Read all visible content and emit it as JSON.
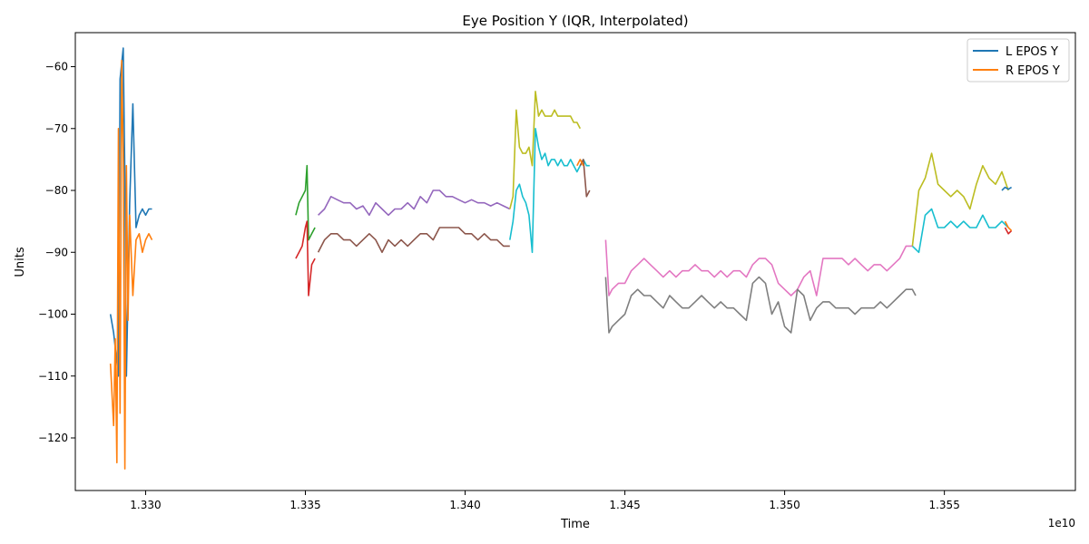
{
  "chart_data": {
    "type": "line",
    "title": "Eye Position Y (IQR, Interpolated)",
    "xlabel": "Time",
    "ylabel": "Units",
    "x_offset_label": "1e10",
    "xlim": [
      1.3278,
      1.3591
    ],
    "ylim": [
      -128.5,
      -54.5
    ],
    "x_ticks": [
      1.33,
      1.335,
      1.34,
      1.345,
      1.35,
      1.355
    ],
    "x_tick_labels": [
      "1.330",
      "1.335",
      "1.340",
      "1.345",
      "1.350",
      "1.355"
    ],
    "y_ticks": [
      -60,
      -70,
      -80,
      -90,
      -100,
      -110,
      -120
    ],
    "y_tick_labels": [
      "−60",
      "−70",
      "−80",
      "−90",
      "−100",
      "−110",
      "−120"
    ],
    "grid": false,
    "legend_position": "top-right",
    "legend": [
      {
        "label": "L EPOS Y",
        "color": "#1f77b4"
      },
      {
        "label": "R EPOS Y",
        "color": "#ff7f0e"
      }
    ],
    "series": [
      {
        "color": "#1f77b4",
        "x": [
          1.3289,
          1.329,
          1.32915,
          1.3292,
          1.3293,
          1.32935,
          1.3294,
          1.3295,
          1.3296,
          1.3297,
          1.3298,
          1.3299,
          1.33,
          1.3301,
          1.3302
        ],
        "y": [
          -100,
          -103,
          -110,
          -62,
          -57,
          -78,
          -110,
          -82,
          -66,
          -86,
          -84,
          -83,
          -84,
          -83,
          -83
        ]
      },
      {
        "color": "#ff7f0e",
        "x": [
          1.3289,
          1.329,
          1.32905,
          1.3291,
          1.32915,
          1.3292,
          1.32925,
          1.3293,
          1.32935,
          1.3294,
          1.32945,
          1.3295,
          1.3296,
          1.3297,
          1.3298,
          1.3299,
          1.33,
          1.3301,
          1.3302
        ],
        "y": [
          -108,
          -118,
          -104,
          -124,
          -70,
          -116,
          -59,
          -74,
          -125,
          -76,
          -101,
          -84,
          -97,
          -88,
          -87,
          -90,
          -88,
          -87,
          -88
        ]
      },
      {
        "color": "#2ca02c",
        "x": [
          1.3347,
          1.3348,
          1.3349,
          1.335,
          1.33505,
          1.3351,
          1.3352,
          1.3353
        ],
        "y": [
          -84,
          -82,
          -81,
          -80,
          -76,
          -88,
          -87,
          -86
        ]
      },
      {
        "color": "#d62728",
        "x": [
          1.3347,
          1.3348,
          1.3349,
          1.335,
          1.33505,
          1.3351,
          1.3352,
          1.3353
        ],
        "y": [
          -91,
          -90,
          -89,
          -86,
          -85,
          -97,
          -92,
          -91
        ]
      },
      {
        "color": "#9467bd",
        "x": [
          1.3354,
          1.3356,
          1.3358,
          1.336,
          1.3362,
          1.3364,
          1.3366,
          1.3368,
          1.337,
          1.3372,
          1.3374,
          1.3376,
          1.3378,
          1.338,
          1.3382,
          1.3384,
          1.3386,
          1.3388,
          1.339,
          1.3392,
          1.3394,
          1.3396,
          1.3398,
          1.34,
          1.3402,
          1.3404,
          1.3406,
          1.3408,
          1.341,
          1.3412,
          1.3414
        ],
        "y": [
          -84,
          -83,
          -81,
          -81.5,
          -82,
          -82,
          -83,
          -82.5,
          -84,
          -82,
          -83,
          -84,
          -83,
          -83,
          -82,
          -83,
          -81,
          -82,
          -80,
          -80,
          -81,
          -81,
          -81.5,
          -82,
          -81.5,
          -82,
          -82,
          -82.5,
          -82,
          -82.5,
          -83
        ]
      },
      {
        "color": "#8c564b",
        "x": [
          1.3354,
          1.3356,
          1.3358,
          1.336,
          1.3362,
          1.3364,
          1.3366,
          1.3368,
          1.337,
          1.3372,
          1.3374,
          1.3376,
          1.3378,
          1.338,
          1.3382,
          1.3384,
          1.3386,
          1.3388,
          1.339,
          1.3392,
          1.3394,
          1.3396,
          1.3398,
          1.34,
          1.3402,
          1.3404,
          1.3406,
          1.3408,
          1.341,
          1.3412,
          1.3414
        ],
        "y": [
          -90,
          -88,
          -87,
          -87,
          -88,
          -88,
          -89,
          -88,
          -87,
          -88,
          -90,
          -88,
          -89,
          -88,
          -89,
          -88,
          -87,
          -87,
          -88,
          -86,
          -86,
          -86,
          -86,
          -87,
          -87,
          -88,
          -87,
          -88,
          -88,
          -89,
          -89
        ]
      },
      {
        "color": "#17becf",
        "x": [
          1.3414,
          1.3415,
          1.3416,
          1.3417,
          1.3418,
          1.3419,
          1.342,
          1.3421,
          1.3422,
          1.3423,
          1.3424,
          1.3425,
          1.3426,
          1.3427,
          1.3428,
          1.3429,
          1.343,
          1.3431,
          1.3432,
          1.3433,
          1.3434,
          1.3435,
          1.3436,
          1.3437,
          1.3438,
          1.3439
        ],
        "y": [
          -88,
          -85,
          -80,
          -79,
          -81,
          -82,
          -84,
          -90,
          -70,
          -73,
          -75,
          -74,
          -76,
          -75,
          -75,
          -76,
          -75,
          -76,
          -76,
          -75,
          -76,
          -77,
          -76,
          -75,
          -76,
          -76
        ]
      },
      {
        "color": "#bcbd22",
        "x": [
          1.3414,
          1.3415,
          1.3416,
          1.3417,
          1.3418,
          1.3419,
          1.342,
          1.3421,
          1.3422,
          1.3423,
          1.3424,
          1.3425,
          1.3426,
          1.3427,
          1.3428,
          1.3429,
          1.343,
          1.3431,
          1.3432,
          1.3433,
          1.3434,
          1.3435,
          1.3436
        ],
        "y": [
          -83,
          -81,
          -67,
          -73,
          -74,
          -74,
          -73,
          -76,
          -64,
          -68,
          -67,
          -68,
          -68,
          -68,
          -67,
          -68,
          -68,
          -68,
          -68,
          -68,
          -69,
          -69,
          -70
        ]
      },
      {
        "color": "#e377c2",
        "x": [
          1.3444,
          1.3445,
          1.3446,
          1.3448,
          1.345,
          1.3452,
          1.3454,
          1.3456,
          1.3458,
          1.346,
          1.3462,
          1.3464,
          1.3466,
          1.3468,
          1.347,
          1.3472,
          1.3474,
          1.3476,
          1.3478,
          1.348,
          1.3482,
          1.3484,
          1.3486,
          1.3488,
          1.349,
          1.3492,
          1.3494,
          1.3496,
          1.3498,
          1.35,
          1.3502,
          1.3504,
          1.3506,
          1.3508,
          1.351,
          1.3512,
          1.3514,
          1.3516,
          1.3518,
          1.352,
          1.3522,
          1.3524,
          1.3526,
          1.3528,
          1.353,
          1.3532,
          1.3534,
          1.3536,
          1.3538,
          1.354
        ],
        "y": [
          -88,
          -97,
          -96,
          -95,
          -95,
          -93,
          -92,
          -91,
          -92,
          -93,
          -94,
          -93,
          -94,
          -93,
          -93,
          -92,
          -93,
          -93,
          -94,
          -93,
          -94,
          -93,
          -93,
          -94,
          -92,
          -91,
          -91,
          -92,
          -95,
          -96,
          -97,
          -96,
          -94,
          -93,
          -97,
          -91,
          -91,
          -91,
          -91,
          -92,
          -91,
          -92,
          -93,
          -92,
          -92,
          -93,
          -92,
          -91,
          -89,
          -89
        ]
      },
      {
        "color": "#7f7f7f",
        "x": [
          1.3444,
          1.3445,
          1.3446,
          1.3448,
          1.345,
          1.3452,
          1.3454,
          1.3456,
          1.3458,
          1.346,
          1.3462,
          1.3464,
          1.3466,
          1.3468,
          1.347,
          1.3472,
          1.3474,
          1.3476,
          1.3478,
          1.348,
          1.3482,
          1.3484,
          1.3486,
          1.3488,
          1.349,
          1.3492,
          1.3494,
          1.3496,
          1.3498,
          1.35,
          1.3502,
          1.3504,
          1.3506,
          1.3508,
          1.351,
          1.3512,
          1.3514,
          1.3516,
          1.3518,
          1.352,
          1.3522,
          1.3524,
          1.3526,
          1.3528,
          1.353,
          1.3532,
          1.3534,
          1.3536,
          1.3538,
          1.354,
          1.3541
        ],
        "y": [
          -94,
          -103,
          -102,
          -101,
          -100,
          -97,
          -96,
          -97,
          -97,
          -98,
          -99,
          -97,
          -98,
          -99,
          -99,
          -98,
          -97,
          -98,
          -99,
          -98,
          -99,
          -99,
          -100,
          -101,
          -95,
          -94,
          -95,
          -100,
          -98,
          -102,
          -103,
          -96,
          -97,
          -101,
          -99,
          -98,
          -98,
          -99,
          -99,
          -99,
          -100,
          -99,
          -99,
          -99,
          -98,
          -99,
          -98,
          -97,
          -96,
          -96,
          -97
        ]
      },
      {
        "color": "#17becf",
        "x": [
          1.354,
          1.3542,
          1.3544,
          1.3546,
          1.3548,
          1.355,
          1.3552,
          1.3554,
          1.3556,
          1.3558,
          1.356,
          1.3562,
          1.3564,
          1.3566,
          1.3568,
          1.357
        ],
        "y": [
          -89,
          -90,
          -84,
          -83,
          -86,
          -86,
          -85,
          -86,
          -85,
          -86,
          -86,
          -84,
          -86,
          -86,
          -85,
          -86
        ]
      },
      {
        "color": "#bcbd22",
        "x": [
          1.354,
          1.3542,
          1.3544,
          1.3546,
          1.3548,
          1.355,
          1.3552,
          1.3554,
          1.3556,
          1.3558,
          1.356,
          1.3562,
          1.3564,
          1.3566,
          1.3568,
          1.357
        ],
        "y": [
          -89,
          -80,
          -78,
          -74,
          -79,
          -80,
          -81,
          -80,
          -81,
          -83,
          -79,
          -76,
          -78,
          -79,
          -77,
          -80
        ]
      },
      {
        "color": "#1f77b4",
        "x": [
          1.3568,
          1.3569,
          1.357,
          1.3571
        ],
        "y": [
          -80,
          -79.5,
          -79.8,
          -79.5
        ]
      },
      {
        "color": "#d62728",
        "x": [
          1.3569,
          1.357,
          1.3571
        ],
        "y": [
          -86,
          -87,
          -86.5
        ]
      },
      {
        "color": "#ff7f0e",
        "x": [
          1.3569,
          1.357,
          1.3571
        ],
        "y": [
          -85,
          -86,
          -86.5
        ]
      },
      {
        "color": "#8c564b",
        "x": [
          1.3436,
          1.3437,
          1.3438,
          1.3439
        ],
        "y": [
          -76,
          -75,
          -81,
          -80
        ]
      },
      {
        "color": "#ff7f0e",
        "x": [
          1.3435,
          1.3436,
          1.3437
        ],
        "y": [
          -76,
          -75,
          -76
        ]
      }
    ]
  }
}
